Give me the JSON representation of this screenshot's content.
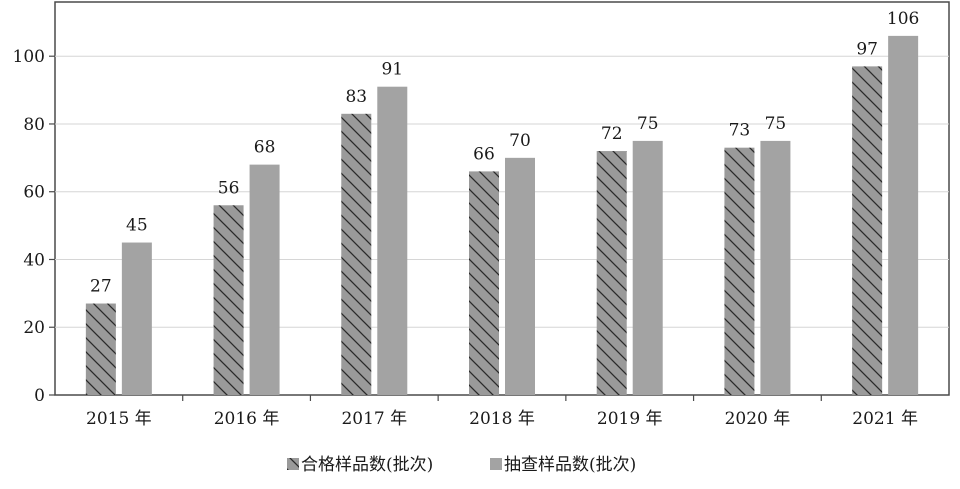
{
  "chart_data": {
    "type": "bar",
    "categories": [
      "2015 年",
      "2016 年",
      "2017 年",
      "2018 年",
      "2019 年",
      "2020 年",
      "2021 年"
    ],
    "series": [
      {
        "name": "合格样品数(批次)",
        "values": [
          27,
          56,
          83,
          66,
          72,
          73,
          97
        ],
        "color": "#9a9a9a",
        "pattern": "diagonal-hatch"
      },
      {
        "name": "抽查样品数(批次)",
        "values": [
          45,
          68,
          91,
          70,
          75,
          75,
          106
        ],
        "color": "#a3a3a3",
        "pattern": "solid"
      }
    ],
    "y_ticks": [
      0,
      20,
      40,
      60,
      80,
      100
    ],
    "ylim": [
      0,
      116
    ],
    "grid": "horizontal",
    "legend_position": "bottom",
    "border_color": "#4a4a4a",
    "grid_color": "#d6d6d6",
    "hatch_color": "#2a2a2a"
  }
}
